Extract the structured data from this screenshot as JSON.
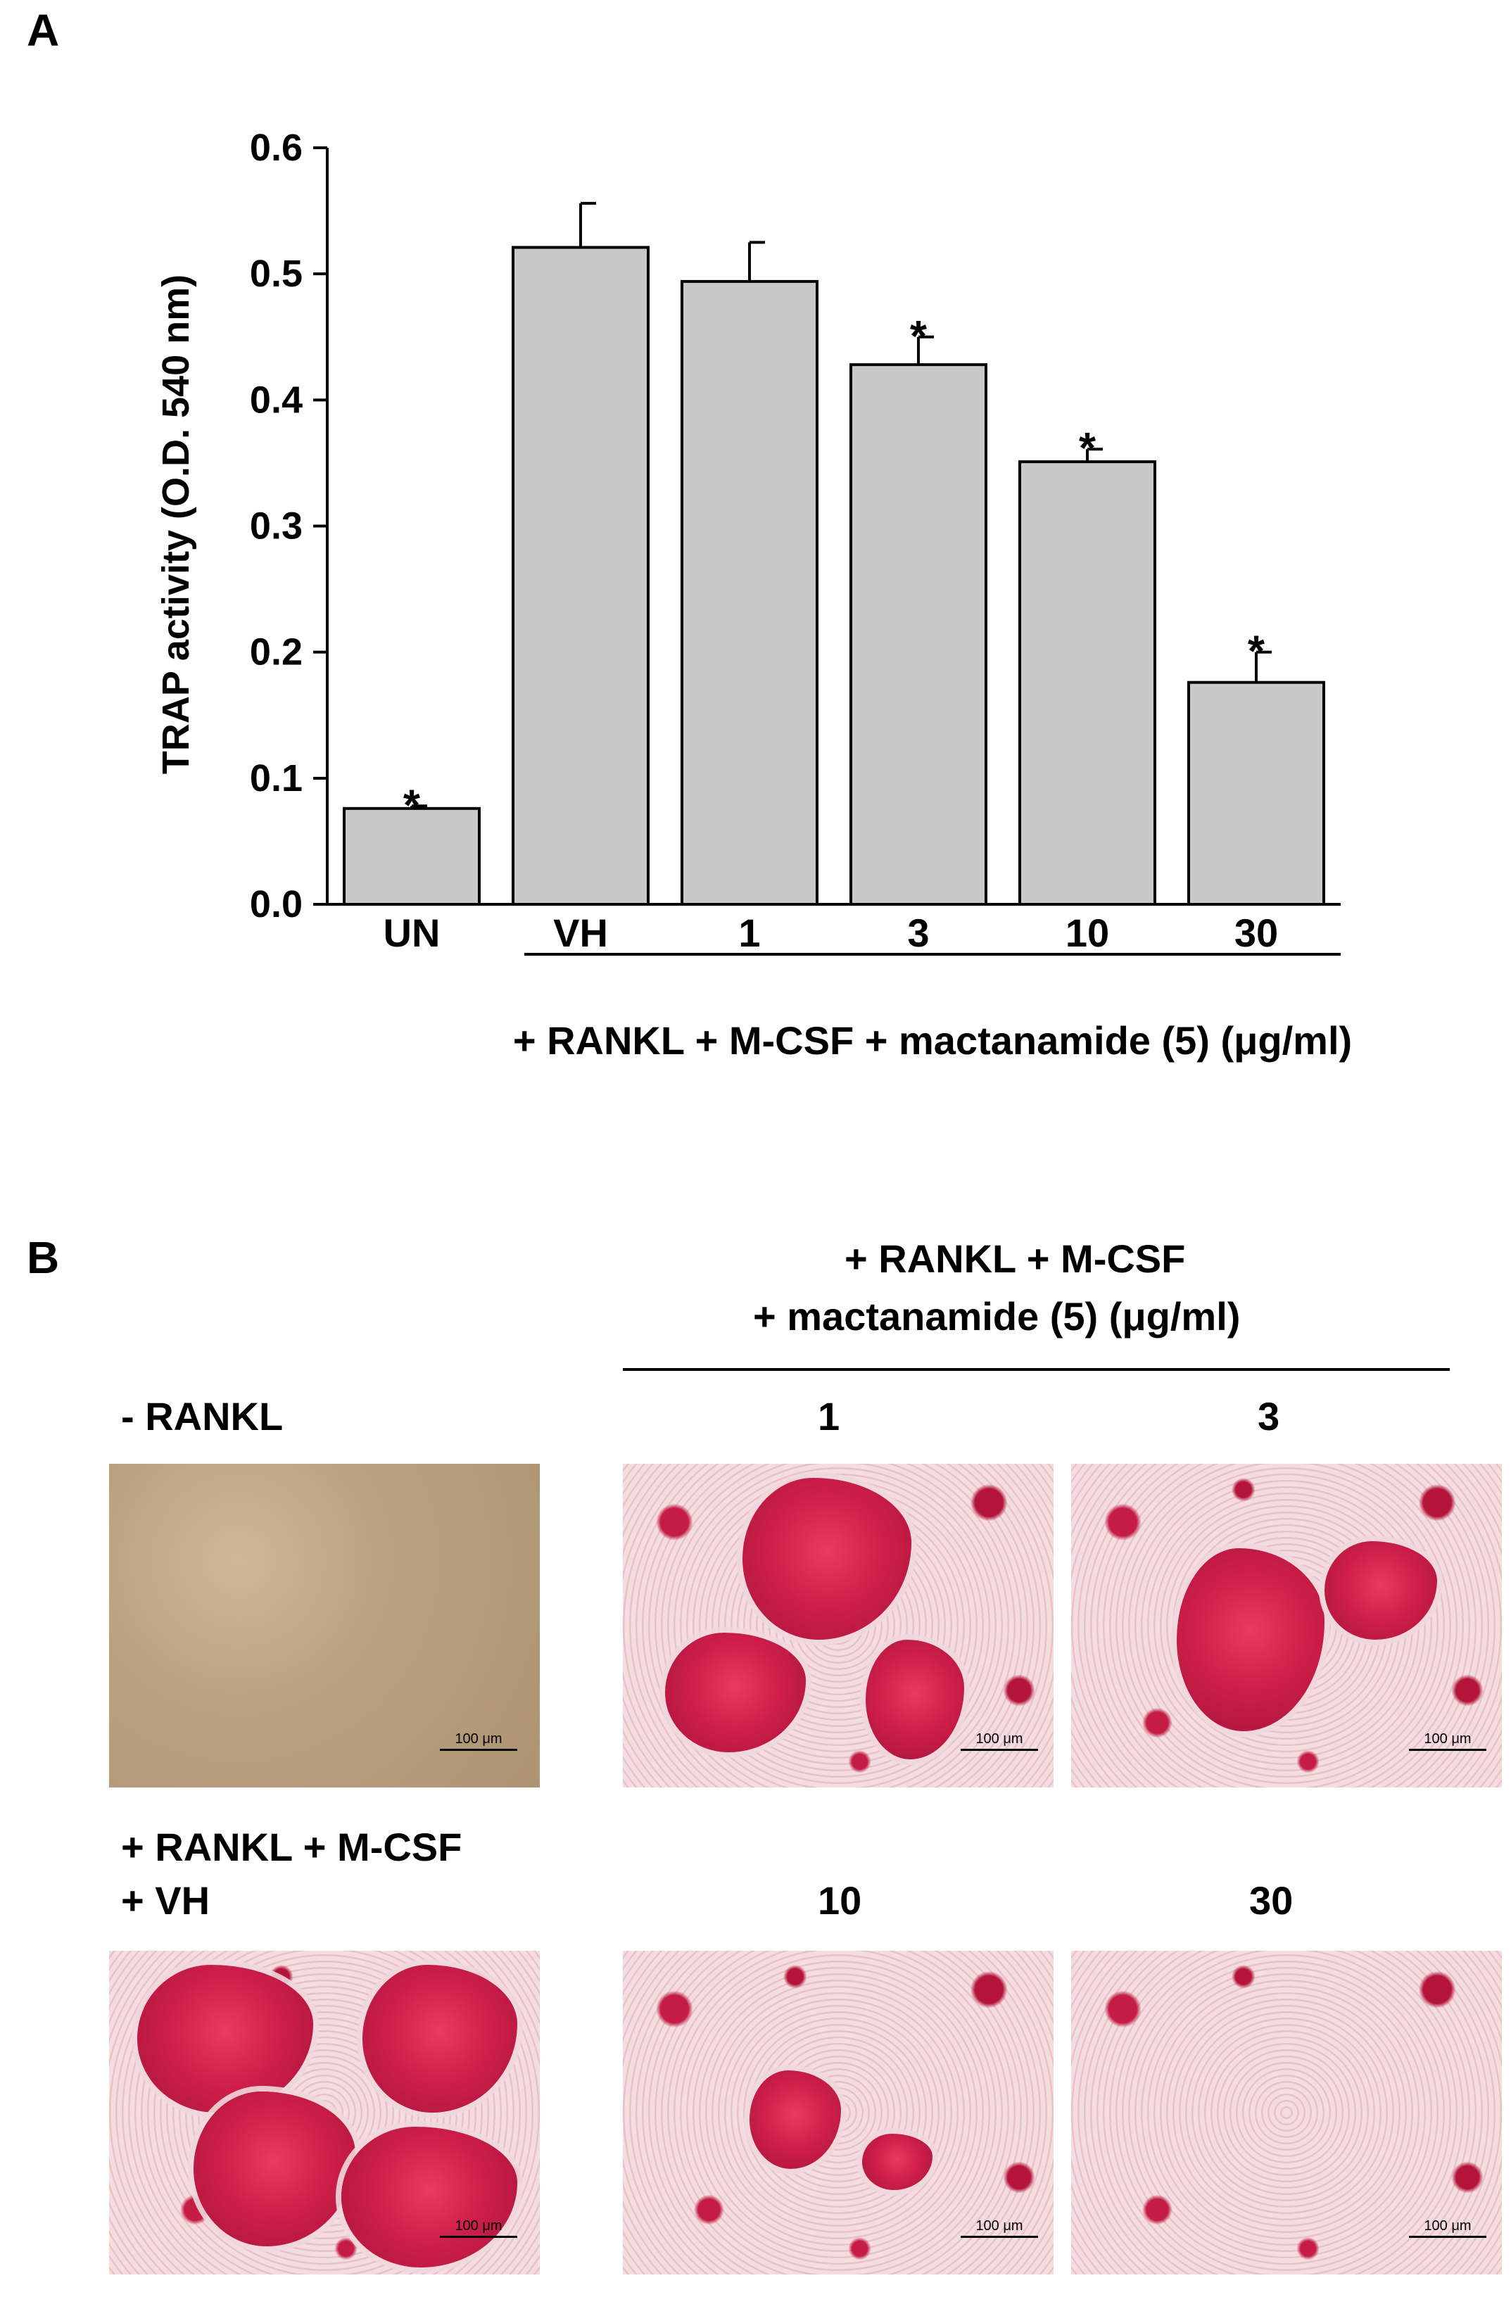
{
  "panel_a_label": "A",
  "panel_b_label": "B",
  "chart_data": {
    "type": "bar",
    "categories": [
      "UN",
      "VH",
      "1",
      "3",
      "10",
      "30"
    ],
    "values": [
      0.076,
      0.521,
      0.494,
      0.428,
      0.351,
      0.176
    ],
    "errors": [
      0.002,
      0.035,
      0.031,
      0.022,
      0.01,
      0.024
    ],
    "significant": [
      true,
      false,
      false,
      true,
      true,
      true
    ],
    "significance_marker": "*",
    "ylabel": "TRAP activity (O.D. 540 nm)",
    "xlabel": "+ RANKL + M-CSF + mactanamide (5) (μg/ml)",
    "ylim": [
      0.0,
      0.6
    ],
    "yticks": [
      "0.0",
      "0.1",
      "0.2",
      "0.3",
      "0.4",
      "0.5",
      "0.6"
    ],
    "bar_color": "#c8c8c8",
    "grid": false
  },
  "panel_b": {
    "header_line1": "+ RANKL + M-CSF",
    "header_line2": "+ mactanamide (5) (μg/ml)",
    "minus_rankl_label": "- RANKL",
    "vh_label_line1": "+ RANKL + M-CSF",
    "vh_label_line2": "+ VH",
    "dose_labels": [
      "1",
      "3",
      "10",
      "30"
    ],
    "scale_bar_text": "100 μm",
    "stain_color": "#c41c44"
  }
}
